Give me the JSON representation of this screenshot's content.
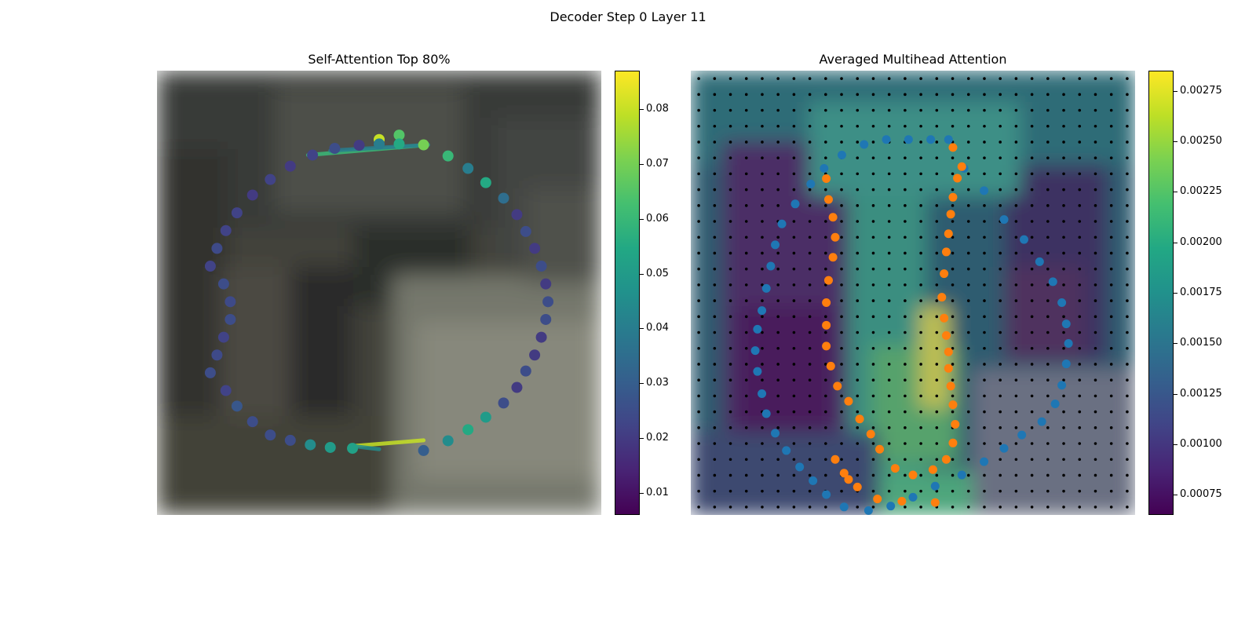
{
  "figure": {
    "suptitle": "Decoder Step 0 Layer 11"
  },
  "colors": {
    "viridis": [
      "#440154",
      "#482475",
      "#414487",
      "#355f8d",
      "#2a788e",
      "#21918c",
      "#22a884",
      "#44bf70",
      "#7ad151",
      "#bddf26",
      "#fde725"
    ],
    "contour_blue": "#1f77b4",
    "contour_orange": "#ff7f0e",
    "grid_dot": "#000000"
  },
  "chart_data": [
    {
      "type": "scatter",
      "title": "Self-Attention Top 80%",
      "xlim": [
        0,
        1
      ],
      "ylim": [
        0,
        1
      ],
      "colorbar": {
        "range": [
          0.006,
          0.087
        ],
        "ticks": [
          "0.01",
          "0.02",
          "0.03",
          "0.04",
          "0.05",
          "0.06",
          "0.07",
          "0.08"
        ]
      },
      "points": {
        "x": [
          0.5,
          0.545,
          0.6,
          0.655,
          0.7,
          0.74,
          0.78,
          0.81,
          0.83,
          0.85,
          0.865,
          0.875,
          0.88,
          0.875,
          0.865,
          0.85,
          0.83,
          0.81,
          0.78,
          0.74,
          0.7,
          0.655,
          0.6,
          0.545,
          0.5,
          0.455,
          0.4,
          0.35,
          0.3,
          0.255,
          0.215,
          0.18,
          0.155,
          0.135,
          0.12,
          0.15,
          0.165,
          0.165,
          0.15,
          0.135,
          0.12,
          0.155,
          0.18,
          0.215,
          0.255,
          0.3,
          0.345,
          0.39,
          0.44
        ],
        "y": [
          0.845,
          0.855,
          0.833,
          0.808,
          0.78,
          0.748,
          0.713,
          0.676,
          0.638,
          0.6,
          0.56,
          0.52,
          0.48,
          0.44,
          0.4,
          0.36,
          0.324,
          0.287,
          0.252,
          0.22,
          0.192,
          0.167,
          0.145,
          0.835,
          0.835,
          0.832,
          0.825,
          0.81,
          0.785,
          0.755,
          0.72,
          0.68,
          0.64,
          0.6,
          0.56,
          0.52,
          0.48,
          0.44,
          0.4,
          0.36,
          0.32,
          0.28,
          0.245,
          0.21,
          0.18,
          0.168,
          0.158,
          0.152,
          0.15
        ],
        "value": [
          0.08,
          0.065,
          0.07,
          0.06,
          0.04,
          0.055,
          0.035,
          0.02,
          0.025,
          0.02,
          0.025,
          0.02,
          0.025,
          0.025,
          0.02,
          0.02,
          0.025,
          0.02,
          0.025,
          0.05,
          0.055,
          0.045,
          0.03,
          0.055,
          0.04,
          0.02,
          0.025,
          0.022,
          0.02,
          0.022,
          0.02,
          0.022,
          0.022,
          0.024,
          0.022,
          0.025,
          0.024,
          0.025,
          0.022,
          0.024,
          0.025,
          0.022,
          0.028,
          0.025,
          0.025,
          0.025,
          0.045,
          0.05,
          0.052
        ]
      },
      "lines": [
        {
          "x": [
            0.61,
            0.34
          ],
          "y": [
            0.833,
            0.81
          ],
          "value": 0.06
        },
        {
          "x": [
            0.61,
            0.39
          ],
          "y": [
            0.833,
            0.82
          ],
          "value": 0.04
        },
        {
          "x": [
            0.44,
            0.6
          ],
          "y": [
            0.155,
            0.168
          ],
          "value": 0.08
        },
        {
          "x": [
            0.44,
            0.5
          ],
          "y": [
            0.155,
            0.148
          ],
          "value": 0.045
        }
      ]
    },
    {
      "type": "heatmap",
      "title": "Averaged Multihead Attention",
      "xlim": [
        0,
        1
      ],
      "ylim": [
        0,
        1
      ],
      "colorbar": {
        "range": [
          0.00065,
          0.00285
        ],
        "ticks": [
          "0.00075",
          "0.00100",
          "0.00125",
          "0.00150",
          "0.00175",
          "0.00200",
          "0.00225",
          "0.00250",
          "0.00275"
        ]
      },
      "grid_points": {
        "columns": 28,
        "rows": 28
      },
      "series": [
        {
          "x": [
            0.58,
            0.54,
            0.49,
            0.44,
            0.39,
            0.34,
            0.3,
            0.27,
            0.235,
            0.205,
            0.19,
            0.18,
            0.17,
            0.16,
            0.15,
            0.145,
            0.15,
            0.16,
            0.17,
            0.19,
            0.215,
            0.245,
            0.275,
            0.305,
            0.345,
            0.4,
            0.45,
            0.5,
            0.55,
            0.61,
            0.66,
            0.705,
            0.745,
            0.79,
            0.82,
            0.835,
            0.845,
            0.85,
            0.845,
            0.835,
            0.815,
            0.785,
            0.75,
            0.705,
            0.66,
            0.615
          ],
          "y": [
            0.845,
            0.845,
            0.845,
            0.845,
            0.834,
            0.81,
            0.78,
            0.745,
            0.7,
            0.655,
            0.608,
            0.56,
            0.51,
            0.46,
            0.418,
            0.37,
            0.323,
            0.273,
            0.228,
            0.184,
            0.145,
            0.108,
            0.077,
            0.046,
            0.018,
            0.01,
            0.02,
            0.04,
            0.065,
            0.09,
            0.12,
            0.15,
            0.18,
            0.21,
            0.25,
            0.292,
            0.34,
            0.386,
            0.43,
            0.478,
            0.525,
            0.57,
            0.62,
            0.665,
            0.73,
            0.78
          ]
        },
        {
          "x": [
            0.59,
            0.61,
            0.6,
            0.59,
            0.585,
            0.58,
            0.575,
            0.57,
            0.565,
            0.57,
            0.575,
            0.58,
            0.58,
            0.585,
            0.59,
            0.595,
            0.59,
            0.575,
            0.545,
            0.5,
            0.46,
            0.425,
            0.405,
            0.38,
            0.355,
            0.33,
            0.315,
            0.305,
            0.305,
            0.305,
            0.31,
            0.32,
            0.325,
            0.32,
            0.31,
            0.305,
            0.355,
            0.345,
            0.325,
            0.375,
            0.42,
            0.475,
            0.55
          ],
          "y": [
            0.827,
            0.784,
            0.758,
            0.715,
            0.677,
            0.633,
            0.592,
            0.543,
            0.49,
            0.443,
            0.404,
            0.367,
            0.33,
            0.29,
            0.248,
            0.204,
            0.162,
            0.125,
            0.102,
            0.09,
            0.105,
            0.148,
            0.182,
            0.216,
            0.256,
            0.29,
            0.335,
            0.38,
            0.427,
            0.478,
            0.528,
            0.58,
            0.625,
            0.67,
            0.71,
            0.757,
            0.08,
            0.094,
            0.125,
            0.063,
            0.036,
            0.031,
            0.028
          ]
        }
      ]
    }
  ]
}
